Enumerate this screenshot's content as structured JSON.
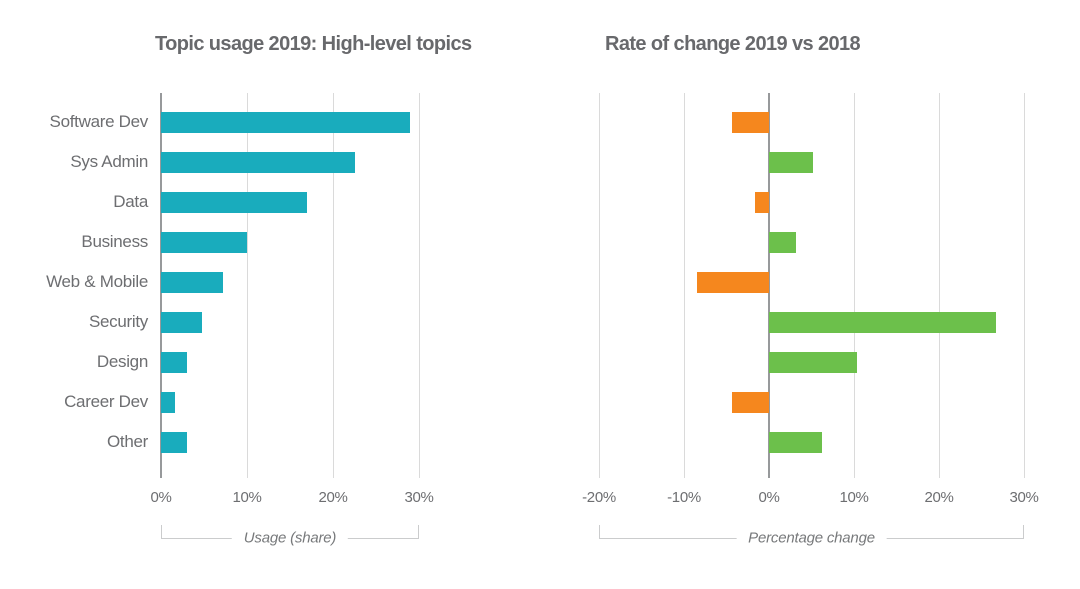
{
  "page": {
    "background": "#ffffff"
  },
  "colors": {
    "page_bg": "#ffffff",
    "teal": "#19ACBD",
    "orange": "#F5871E",
    "green": "#6CC04B",
    "text_gray": "#6D6E71",
    "title_gray": "#68696C",
    "gridline": "#DADADA",
    "zero_axis": "#97999B",
    "bracket": "#CBCCCD",
    "axis_label_gray": "#77797B"
  },
  "chart_data": [
    {
      "type": "bar",
      "orientation": "horizontal",
      "title": "Topic usage 2019: High-level topics",
      "categories": [
        "Software Dev",
        "Sys Admin",
        "Data",
        "Business",
        "Web & Mobile",
        "Security",
        "Design",
        "Career Dev",
        "Other"
      ],
      "values": [
        29,
        22.5,
        17,
        10,
        7.2,
        4.8,
        3,
        1.6,
        3
      ],
      "xlabel": "Usage (share)",
      "xlim": [
        0,
        30
      ],
      "xticks": [
        0,
        10,
        20,
        30
      ],
      "xtick_labels": [
        "0%",
        "10%",
        "20%",
        "30%"
      ],
      "bar_color": "#19ACBD",
      "grid": true,
      "legend": false,
      "category_labels_shown": true
    },
    {
      "type": "bar",
      "orientation": "horizontal",
      "title": "Rate of change 2019 vs 2018",
      "categories": [
        "Software Dev",
        "Sys Admin",
        "Data",
        "Business",
        "Web & Mobile",
        "Security",
        "Design",
        "Career Dev",
        "Other"
      ],
      "values": [
        -4.4,
        5.2,
        -1.7,
        3.2,
        -8.5,
        26.7,
        10.4,
        -4.4,
        6.2
      ],
      "xlabel": "Percentage change",
      "xlim": [
        -20,
        30
      ],
      "xticks": [
        -20,
        -10,
        0,
        10,
        20,
        30
      ],
      "xtick_labels": [
        "-20%",
        "-10%",
        "0%",
        "10%",
        "20%",
        "30%"
      ],
      "positive_color": "#6CC04B",
      "negative_color": "#F5871E",
      "grid": true,
      "legend": false,
      "category_labels_shown": false
    }
  ]
}
